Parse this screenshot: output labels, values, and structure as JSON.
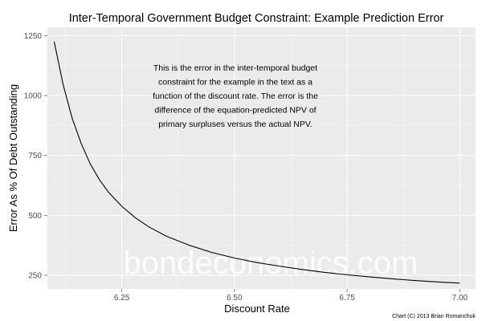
{
  "chart_data": {
    "type": "line",
    "title": "Inter-Temporal Government Budget Constraint: Example Prediction Error",
    "xlabel": "Discount Rate",
    "ylabel": "Error As % Of Debt Outstanding",
    "xlim": [
      6.085,
      7.035
    ],
    "ylim": [
      193,
      1285
    ],
    "x_ticks": [
      6.25,
      6.5,
      6.75,
      7.0
    ],
    "x_tick_labels": [
      "6.25",
      "6.50",
      "6.75",
      "7.00"
    ],
    "y_ticks": [
      250,
      500,
      750,
      1000,
      1250
    ],
    "y_tick_labels": [
      "250",
      "500",
      "750",
      "1000",
      "1250"
    ],
    "grid": true,
    "legend": "none",
    "annotation": [
      "This is the error in the inter-temporal budget",
      "constraint for the example in the text as a",
      "function of the discount rate. The error is the",
      "difference of the equation-predicted NPV of",
      "primary surpluses versus the actual NPV."
    ],
    "watermark": "bondeconomics.com",
    "credit": "Chart (C) 2013 Brian Romanchuk",
    "colors": {
      "panel": "#ebebeb",
      "grid": "#ffffff",
      "line": "#000000"
    },
    "series": [
      {
        "x": [
          6.1,
          6.12,
          6.14,
          6.16,
          6.18,
          6.2,
          6.22,
          6.25,
          6.28,
          6.31,
          6.35,
          6.4,
          6.45,
          6.5,
          6.55,
          6.6,
          6.65,
          6.7,
          6.75,
          6.8,
          6.85,
          6.9,
          6.95,
          7.0
        ],
        "values": [
          1225,
          1045,
          905,
          800,
          715,
          650,
          598,
          538,
          490,
          452,
          412,
          375,
          345,
          322,
          303,
          288,
          274,
          262,
          252,
          243,
          235,
          228,
          222,
          217
        ]
      }
    ]
  }
}
